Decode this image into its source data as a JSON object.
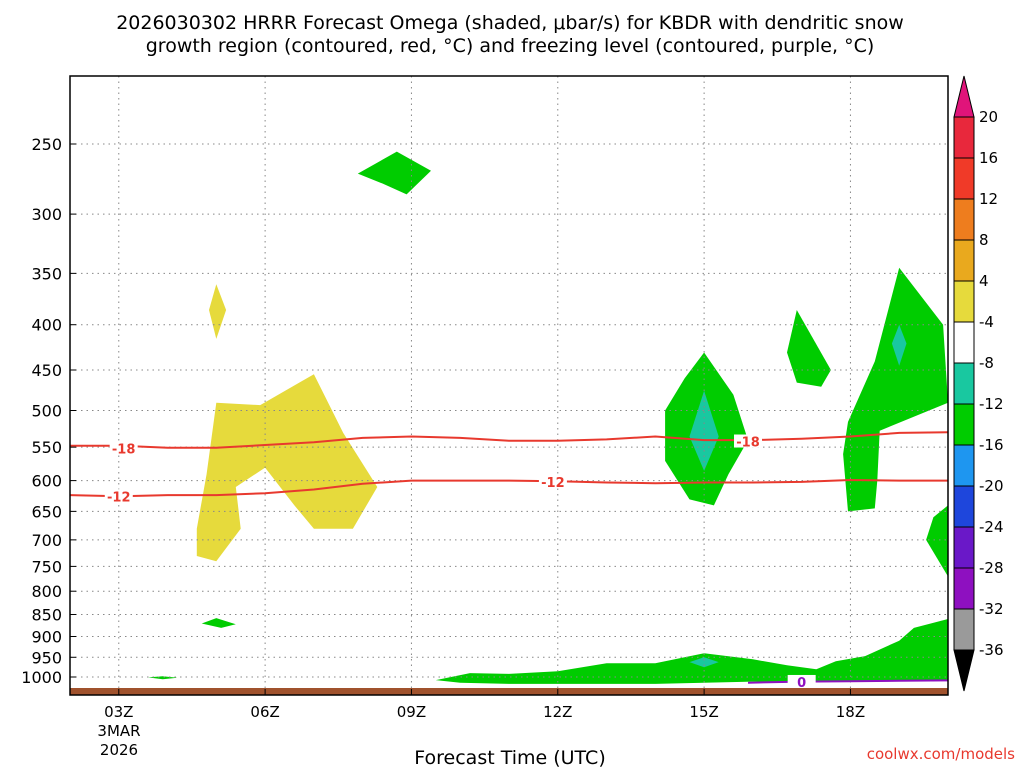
{
  "title_line1": "2026030302 HRRR Forecast Omega (shaded, μbar/s) for KBDR with dendritic snow",
  "title_line2": "growth region (contoured, red, °C) and freezing level (contoured, purple, °C)",
  "xlabel": "Forecast Time (UTC)",
  "date_label": [
    "3MAR",
    "2026"
  ],
  "credit": "coolwx.com/models",
  "colors": {
    "omega_green": "#00cc00",
    "omega_teal": "#19c8a0",
    "omega_yellow": "#e6da3c",
    "ground": "#a0522d",
    "contour_red": "#e8392e",
    "contour_purple": "#8e10c0",
    "grid": "#888888"
  },
  "chart_data": {
    "type": "heatmap",
    "x": {
      "ticks": [
        "03Z",
        "06Z",
        "09Z",
        "12Z",
        "15Z",
        "18Z"
      ],
      "tick_hours": [
        3,
        6,
        9,
        12,
        15,
        18
      ],
      "range_hours": [
        2,
        20
      ]
    },
    "y": {
      "label": "",
      "ticks": [
        250,
        300,
        350,
        400,
        450,
        500,
        550,
        600,
        650,
        700,
        750,
        800,
        850,
        900,
        950,
        1000
      ],
      "range_hpa": [
        200,
        1025
      ],
      "axis": "pressure"
    },
    "colorbar": {
      "levels": [
        20,
        16,
        12,
        8,
        4,
        -4,
        -8,
        -12,
        -16,
        -20,
        -24,
        -28,
        -32,
        -36
      ],
      "colors": [
        "#e8283c",
        "#f03a28",
        "#ee7d1e",
        "#e9a91e",
        "#e6da3c",
        "#ffffff",
        "#19c8a0",
        "#00cc00",
        "#1e96f0",
        "#1e46dc",
        "#6a18c8",
        "#8e10c0",
        "#9a9a9a",
        "#000000"
      ],
      "top_arrow_color": "#e0147a",
      "bottom_arrow_color": "#000000"
    },
    "contours": [
      {
        "value": -18,
        "color": "#e8392e",
        "points": [
          [
            2.0,
            548
          ],
          [
            3.0,
            548
          ],
          [
            4.0,
            551
          ],
          [
            5.0,
            551
          ],
          [
            6.0,
            547
          ],
          [
            7.0,
            543
          ],
          [
            8.0,
            537
          ],
          [
            9.0,
            535
          ],
          [
            10.0,
            537
          ],
          [
            11.0,
            541
          ],
          [
            12.0,
            541
          ],
          [
            13.0,
            539
          ],
          [
            14.0,
            535
          ],
          [
            15.0,
            540
          ],
          [
            16.0,
            540
          ],
          [
            17.0,
            538
          ],
          [
            18.0,
            535
          ],
          [
            19.0,
            530
          ],
          [
            20.0,
            529
          ]
        ],
        "labels": [
          [
            3.1,
            552
          ],
          [
            15.9,
            542
          ]
        ]
      },
      {
        "value": -12,
        "color": "#e8392e",
        "points": [
          [
            2.0,
            623
          ],
          [
            3.0,
            625
          ],
          [
            4.0,
            623
          ],
          [
            5.0,
            623
          ],
          [
            6.0,
            620
          ],
          [
            7.0,
            614
          ],
          [
            8.0,
            605
          ],
          [
            9.0,
            600
          ],
          [
            10.0,
            600
          ],
          [
            11.0,
            600
          ],
          [
            12.0,
            601
          ],
          [
            13.0,
            603
          ],
          [
            14.0,
            604
          ],
          [
            15.0,
            603
          ],
          [
            16.0,
            603
          ],
          [
            17.0,
            602
          ],
          [
            18.0,
            599
          ],
          [
            19.0,
            600
          ],
          [
            20.0,
            600
          ]
        ],
        "labels": [
          [
            3.0,
            625
          ],
          [
            11.9,
            602
          ]
        ]
      },
      {
        "value": 0,
        "color": "#8e10c0",
        "points": [
          [
            15.9,
            1015
          ],
          [
            17.0,
            1012
          ],
          [
            18.0,
            1011
          ],
          [
            19.0,
            1010
          ],
          [
            20.0,
            1009
          ]
        ],
        "labels": [
          [
            17.0,
            1013
          ]
        ]
      }
    ],
    "shaded_regions": [
      {
        "value": -8,
        "color": "#00cc00",
        "points": [
          [
            7.9,
            270
          ],
          [
            8.7,
            255
          ],
          [
            9.4,
            268
          ],
          [
            8.9,
            285
          ],
          [
            8.4,
            277
          ]
        ]
      },
      {
        "value": 6,
        "color": "#e6da3c",
        "points": [
          [
            5.0,
            360
          ],
          [
            5.2,
            385
          ],
          [
            5.0,
            415
          ],
          [
            4.85,
            385
          ]
        ]
      },
      {
        "value": 6,
        "color": "#e6da3c",
        "points": [
          [
            5.0,
            490
          ],
          [
            5.9,
            493
          ],
          [
            7.0,
            455
          ],
          [
            7.6,
            530
          ],
          [
            8.3,
            610
          ],
          [
            7.8,
            680
          ],
          [
            7.0,
            680
          ],
          [
            6.6,
            640
          ],
          [
            6.0,
            580
          ],
          [
            5.4,
            610
          ],
          [
            5.5,
            680
          ],
          [
            5.0,
            740
          ],
          [
            4.6,
            730
          ],
          [
            4.6,
            680
          ],
          [
            4.8,
            590
          ]
        ]
      },
      {
        "value": -8,
        "color": "#00cc00",
        "points": [
          [
            5.0,
            858
          ],
          [
            5.4,
            872
          ],
          [
            5.1,
            880
          ],
          [
            4.7,
            870
          ]
        ]
      },
      {
        "value": -8,
        "color": "#00cc00",
        "points": [
          [
            3.9,
            998
          ],
          [
            4.2,
            1002
          ],
          [
            3.9,
            1006
          ],
          [
            3.6,
            1001
          ]
        ]
      },
      {
        "value": -8,
        "color": "#00cc00",
        "points": [
          [
            15.0,
            430
          ],
          [
            15.6,
            480
          ],
          [
            15.9,
            540
          ],
          [
            15.5,
            590
          ],
          [
            15.2,
            640
          ],
          [
            14.7,
            630
          ],
          [
            14.2,
            570
          ],
          [
            14.2,
            500
          ],
          [
            14.6,
            460
          ]
        ]
      },
      {
        "value": -12,
        "color": "#19c8a0",
        "points": [
          [
            15.0,
            475
          ],
          [
            15.3,
            535
          ],
          [
            15.0,
            585
          ],
          [
            14.7,
            535
          ]
        ]
      },
      {
        "value": -8,
        "color": "#00cc00",
        "points": [
          [
            16.9,
            385
          ],
          [
            17.6,
            450
          ],
          [
            17.4,
            470
          ],
          [
            16.9,
            465
          ],
          [
            16.7,
            430
          ]
        ]
      },
      {
        "value": -8,
        "color": "#00cc00",
        "points": [
          [
            19.0,
            345
          ],
          [
            19.9,
            400
          ],
          [
            20.0,
            490
          ],
          [
            18.6,
            527
          ],
          [
            18.55,
            600
          ],
          [
            18.5,
            645
          ],
          [
            17.95,
            650
          ],
          [
            17.85,
            560
          ],
          [
            17.95,
            515
          ],
          [
            18.5,
            440
          ]
        ]
      },
      {
        "value": -12,
        "color": "#19c8a0",
        "points": [
          [
            19.0,
            400
          ],
          [
            19.15,
            420
          ],
          [
            19.0,
            445
          ],
          [
            18.85,
            420
          ]
        ]
      },
      {
        "value": -8,
        "color": "#00cc00",
        "points": [
          [
            19.7,
            660
          ],
          [
            20.0,
            640
          ],
          [
            20.0,
            770
          ],
          [
            19.55,
            700
          ]
        ]
      },
      {
        "value": -8,
        "color": "#00cc00",
        "points": [
          [
            9.5,
            1008
          ],
          [
            10.2,
            990
          ],
          [
            11.0,
            992
          ],
          [
            12.0,
            985
          ],
          [
            13.0,
            965
          ],
          [
            14.0,
            965
          ],
          [
            15.0,
            940
          ],
          [
            16.0,
            955
          ],
          [
            16.7,
            970
          ],
          [
            17.3,
            980
          ],
          [
            17.7,
            960
          ],
          [
            18.3,
            947
          ],
          [
            19.0,
            910
          ],
          [
            19.3,
            880
          ],
          [
            20.0,
            860
          ],
          [
            20.0,
            1010
          ],
          [
            16.0,
            1012
          ],
          [
            14.0,
            1018
          ],
          [
            11.0,
            1018
          ],
          [
            10.0,
            1015
          ]
        ]
      },
      {
        "value": -12,
        "color": "#19c8a0",
        "points": [
          [
            15.0,
            950
          ],
          [
            15.3,
            962
          ],
          [
            15.0,
            975
          ],
          [
            14.7,
            962
          ]
        ]
      }
    ]
  }
}
